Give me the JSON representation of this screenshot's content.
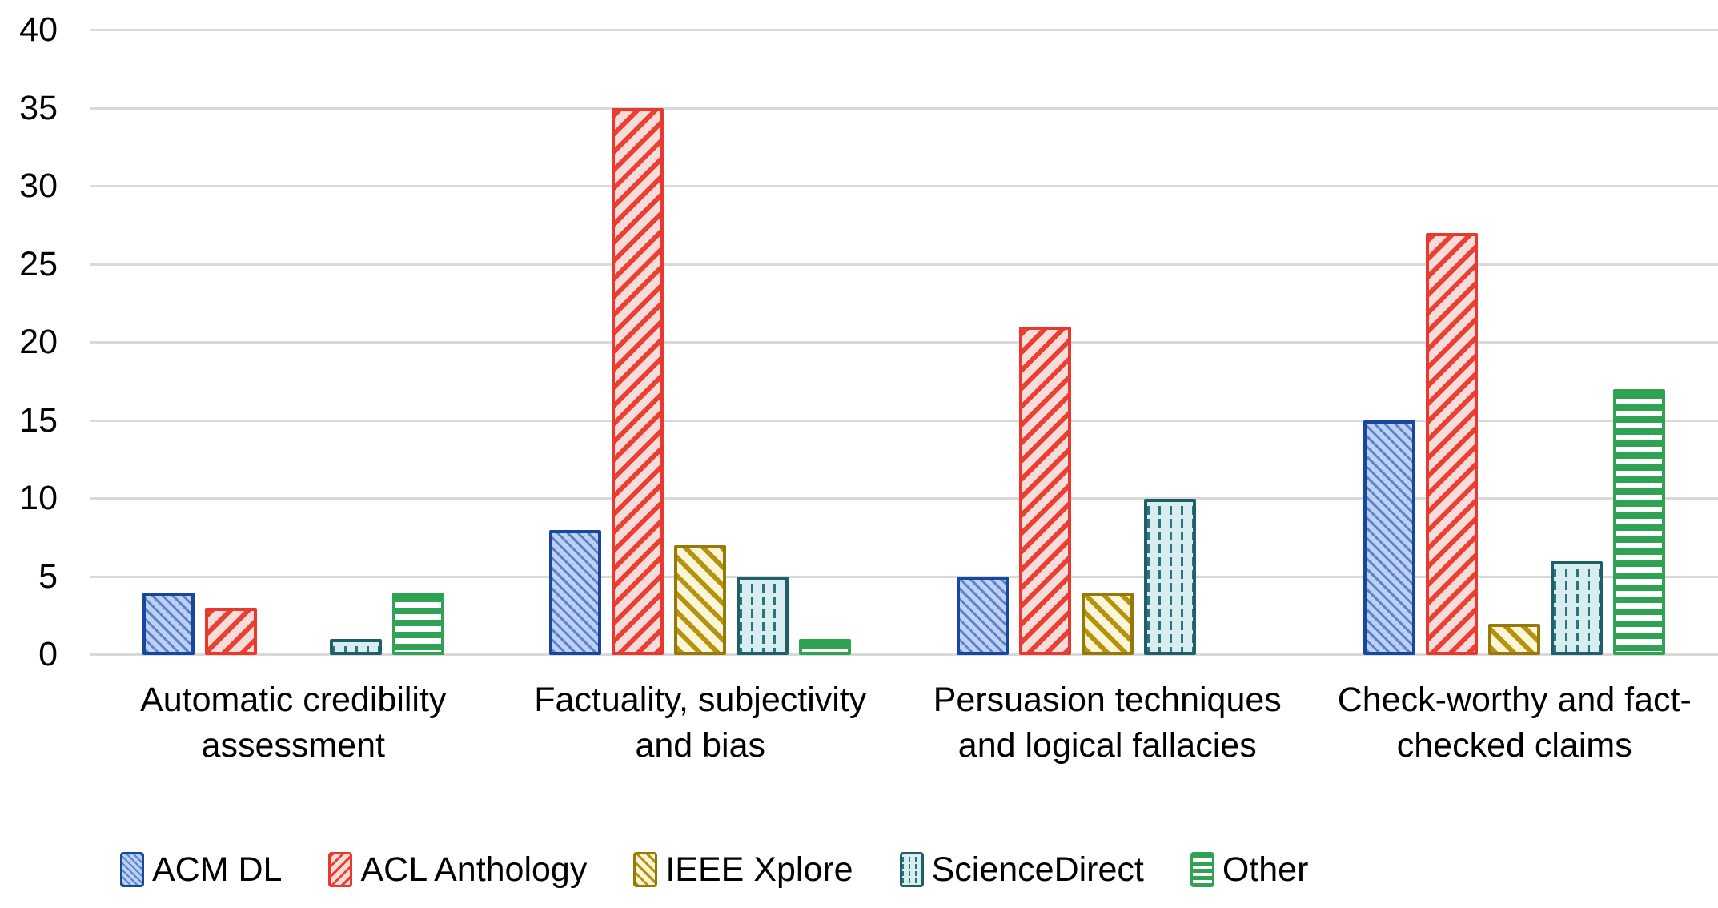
{
  "chart_data": {
    "type": "bar",
    "title": "",
    "xlabel": "",
    "ylabel": "",
    "ylim": [
      0,
      40
    ],
    "y_ticks": [
      0,
      5,
      10,
      15,
      20,
      25,
      30,
      35,
      40
    ],
    "grid": true,
    "legend_position": "bottom",
    "categories": [
      "Automatic credibility assessment",
      "Factuality, subjectivity and bias",
      "Persuasion techniques and logical fallacies",
      "Check-worthy and fact-checked claims"
    ],
    "category_label_lines": [
      [
        "Automatic credibility",
        "assessment"
      ],
      [
        "Factuality, subjectivity",
        "and bias"
      ],
      [
        "Persuasion techniques",
        "and logical fallacies"
      ],
      [
        "Check-worthy and fact-",
        "checked claims"
      ]
    ],
    "series": [
      {
        "key": "acm",
        "name": "ACM DL",
        "values": [
          4,
          8,
          5,
          15
        ],
        "pattern": "diagonal-down-fine",
        "border_color": "#17479e",
        "fill_color": "#bfd1f0"
      },
      {
        "key": "acl",
        "name": "ACL Anthology",
        "values": [
          3,
          35,
          21,
          27
        ],
        "pattern": "diagonal-up",
        "border_color": "#e8392e",
        "fill_color": "#f8dcd9"
      },
      {
        "key": "ieee",
        "name": "IEEE Xplore",
        "values": [
          0,
          7,
          4,
          2
        ],
        "pattern": "diagonal-down",
        "border_color": "#97790a",
        "fill_color": "#fdf5d7"
      },
      {
        "key": "sci",
        "name": "ScienceDirect",
        "values": [
          1,
          5,
          10,
          6
        ],
        "pattern": "vertical-dashes",
        "border_color": "#1e5f68",
        "fill_color": "#d8edf0"
      },
      {
        "key": "other",
        "name": "Other",
        "values": [
          4,
          1,
          0,
          17
        ],
        "pattern": "horizontal-lines",
        "border_color": "#2fa254",
        "fill_color": "#ffffff"
      }
    ],
    "gridline_color": "#d9d9d9",
    "text_color": "#000000"
  }
}
